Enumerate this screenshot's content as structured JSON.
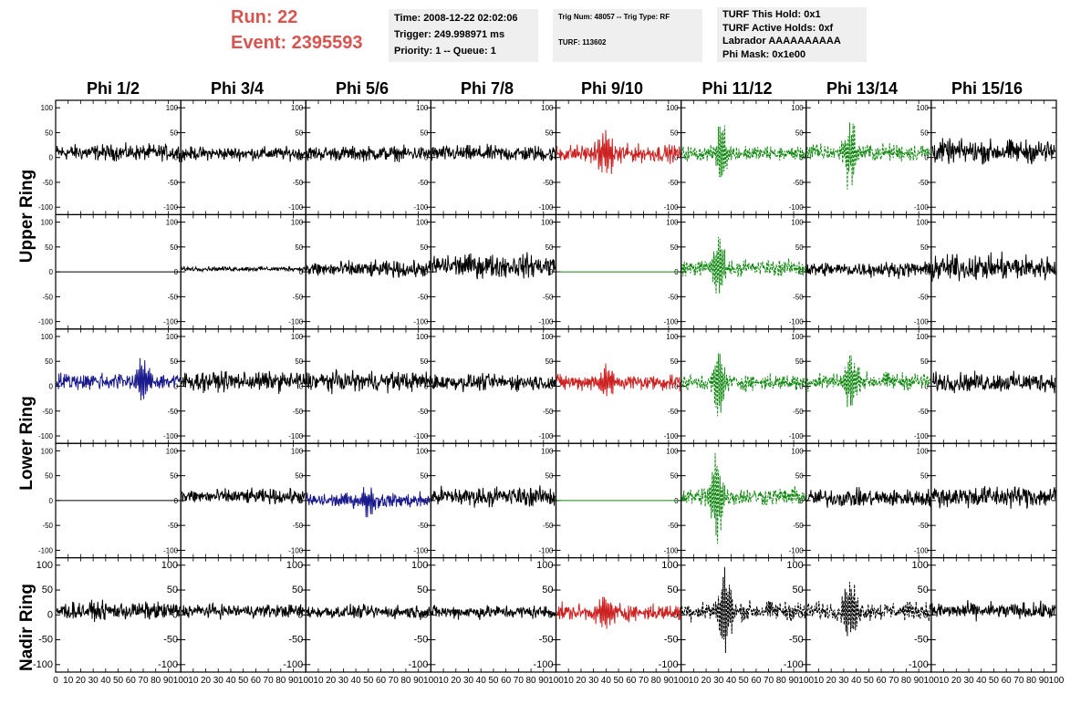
{
  "header": {
    "run_label": "Run:    22",
    "event_label": "Event: 2395593",
    "time": "Time: 2008-12-22 02:02:06",
    "trigger": "Trigger: 249.998971 ms",
    "priority": "Priority: 1 -- Queue: 1",
    "trig_num": "Trig Num: 48057 -- Trig Type: RF",
    "turf": "TURF: 113602",
    "turf_hold": "TURF This Hold: 0x1",
    "turf_active": "TURF Active Holds: 0xf",
    "labrador": "Labrador AAAAAAAAAA",
    "phi_mask": "Phi Mask: 0x1e00"
  },
  "columns": [
    "Phi 1/2",
    "Phi 3/4",
    "Phi 5/6",
    "Phi 7/8",
    "Phi 9/10",
    "Phi 11/12",
    "Phi 13/14",
    "Phi 15/16"
  ],
  "rows": [
    "Upper Ring",
    "Lower Ring",
    "Nadir Ring"
  ],
  "colors": {
    "black": "#000000",
    "red": "#cc2222",
    "green": "#118811",
    "blue": "#1a1a8c",
    "run_text": "#d9534f",
    "panel_bg": "#efefef"
  },
  "chart_data": {
    "type": "line",
    "description_axes": "Each panel: time sample (0–100) vs amplitude",
    "xlim": [
      0,
      100
    ],
    "ylim": [
      -115,
      115
    ],
    "y_ticks": [
      100,
      50,
      0,
      -50,
      -100
    ],
    "x_ticks": [
      0,
      10,
      20,
      30,
      40,
      50,
      60,
      70,
      80,
      90,
      100
    ],
    "panel_rows": 5,
    "panel_cols": 8,
    "panels": [
      {
        "row": 0,
        "col": 0,
        "color": "black",
        "dash": false,
        "amp": 11,
        "baseline": 10,
        "burst": null,
        "flat": false
      },
      {
        "row": 0,
        "col": 1,
        "color": "black",
        "dash": false,
        "amp": 9,
        "baseline": 8,
        "burst": null,
        "flat": false
      },
      {
        "row": 0,
        "col": 2,
        "color": "black",
        "dash": false,
        "amp": 10,
        "baseline": 8,
        "burst": null,
        "flat": false
      },
      {
        "row": 0,
        "col": 3,
        "color": "black",
        "dash": false,
        "amp": 11,
        "baseline": 8,
        "burst": null,
        "flat": false
      },
      {
        "row": 0,
        "col": 4,
        "color": "red",
        "dash": false,
        "amp": 12,
        "baseline": 8,
        "burst": [
          25,
          55,
          38
        ],
        "flat": false
      },
      {
        "row": 0,
        "col": 5,
        "color": "green",
        "dash": true,
        "amp": 10,
        "baseline": 8,
        "burst": [
          25,
          40,
          70
        ],
        "flat": false
      },
      {
        "row": 0,
        "col": 6,
        "color": "green",
        "dash": true,
        "amp": 12,
        "baseline": 10,
        "burst": [
          25,
          45,
          65
        ],
        "flat": false
      },
      {
        "row": 0,
        "col": 7,
        "color": "black",
        "dash": false,
        "amp": 16,
        "baseline": 12,
        "burst": null,
        "flat": false
      },
      {
        "row": 1,
        "col": 0,
        "color": "black",
        "dash": false,
        "amp": 0,
        "baseline": 0,
        "burst": null,
        "flat": true
      },
      {
        "row": 1,
        "col": 1,
        "color": "black",
        "dash": false,
        "amp": 3,
        "baseline": 6,
        "burst": null,
        "flat": false
      },
      {
        "row": 1,
        "col": 2,
        "color": "black",
        "dash": false,
        "amp": 11,
        "baseline": 5,
        "burst": null,
        "flat": false
      },
      {
        "row": 1,
        "col": 3,
        "color": "black",
        "dash": false,
        "amp": 16,
        "baseline": 12,
        "burst": null,
        "flat": false
      },
      {
        "row": 1,
        "col": 4,
        "color": "green",
        "dash": false,
        "amp": 0,
        "baseline": 0,
        "burst": null,
        "flat": true
      },
      {
        "row": 1,
        "col": 5,
        "color": "green",
        "dash": true,
        "amp": 11,
        "baseline": 8,
        "burst": [
          20,
          40,
          58
        ],
        "flat": false
      },
      {
        "row": 1,
        "col": 6,
        "color": "black",
        "dash": false,
        "amp": 10,
        "baseline": 5,
        "burst": null,
        "flat": false
      },
      {
        "row": 1,
        "col": 7,
        "color": "black",
        "dash": false,
        "amp": 17,
        "baseline": 8,
        "burst": null,
        "flat": false
      },
      {
        "row": 2,
        "col": 0,
        "color": "blue",
        "dash": false,
        "amp": 12,
        "baseline": 10,
        "burst": [
          60,
          80,
          40
        ],
        "flat": false
      },
      {
        "row": 2,
        "col": 1,
        "color": "black",
        "dash": false,
        "amp": 13,
        "baseline": 10,
        "burst": null,
        "flat": false
      },
      {
        "row": 2,
        "col": 2,
        "color": "black",
        "dash": false,
        "amp": 13,
        "baseline": 10,
        "burst": null,
        "flat": false
      },
      {
        "row": 2,
        "col": 3,
        "color": "black",
        "dash": false,
        "amp": 11,
        "baseline": 8,
        "burst": null,
        "flat": false
      },
      {
        "row": 2,
        "col": 4,
        "color": "red",
        "dash": false,
        "amp": 11,
        "baseline": 8,
        "burst": [
          25,
          55,
          30
        ],
        "flat": false
      },
      {
        "row": 2,
        "col": 5,
        "color": "green",
        "dash": true,
        "amp": 11,
        "baseline": 8,
        "burst": [
          22,
          38,
          75
        ],
        "flat": false
      },
      {
        "row": 2,
        "col": 6,
        "color": "green",
        "dash": true,
        "amp": 12,
        "baseline": 10,
        "burst": [
          25,
          45,
          55
        ],
        "flat": false
      },
      {
        "row": 2,
        "col": 7,
        "color": "black",
        "dash": false,
        "amp": 13,
        "baseline": 8,
        "burst": null,
        "flat": false
      },
      {
        "row": 3,
        "col": 0,
        "color": "black",
        "dash": false,
        "amp": 0,
        "baseline": 0,
        "burst": null,
        "flat": true
      },
      {
        "row": 3,
        "col": 1,
        "color": "black",
        "dash": false,
        "amp": 10,
        "baseline": 8,
        "burst": null,
        "flat": false
      },
      {
        "row": 3,
        "col": 2,
        "color": "blue",
        "dash": false,
        "amp": 10,
        "baseline": 0,
        "burst": [
          40,
          60,
          30
        ],
        "flat": false
      },
      {
        "row": 3,
        "col": 3,
        "color": "black",
        "dash": false,
        "amp": 13,
        "baseline": 8,
        "burst": null,
        "flat": false
      },
      {
        "row": 3,
        "col": 4,
        "color": "green",
        "dash": false,
        "amp": 0,
        "baseline": 0,
        "burst": null,
        "flat": true
      },
      {
        "row": 3,
        "col": 5,
        "color": "green",
        "dash": true,
        "amp": 12,
        "baseline": 8,
        "burst": [
          18,
          38,
          85
        ],
        "flat": false
      },
      {
        "row": 3,
        "col": 6,
        "color": "black",
        "dash": false,
        "amp": 12,
        "baseline": 5,
        "burst": null,
        "flat": false
      },
      {
        "row": 3,
        "col": 7,
        "color": "black",
        "dash": false,
        "amp": 15,
        "baseline": 8,
        "burst": null,
        "flat": false
      },
      {
        "row": 4,
        "col": 0,
        "color": "black",
        "dash": false,
        "amp": 12,
        "baseline": 8,
        "burst": null,
        "flat": false
      },
      {
        "row": 4,
        "col": 1,
        "color": "black",
        "dash": false,
        "amp": 9,
        "baseline": 8,
        "burst": null,
        "flat": false
      },
      {
        "row": 4,
        "col": 2,
        "color": "black",
        "dash": false,
        "amp": 9,
        "baseline": 6,
        "burst": null,
        "flat": false
      },
      {
        "row": 4,
        "col": 3,
        "color": "black",
        "dash": false,
        "amp": 9,
        "baseline": 6,
        "burst": null,
        "flat": false
      },
      {
        "row": 4,
        "col": 4,
        "color": "red",
        "dash": false,
        "amp": 11,
        "baseline": 5,
        "burst": [
          25,
          55,
          30
        ],
        "flat": false
      },
      {
        "row": 4,
        "col": 5,
        "color": "black",
        "dash": true,
        "amp": 13,
        "baseline": 8,
        "burst": [
          25,
          45,
          85
        ],
        "flat": false
      },
      {
        "row": 4,
        "col": 6,
        "color": "black",
        "dash": true,
        "amp": 12,
        "baseline": 8,
        "burst": [
          25,
          45,
          60
        ],
        "flat": false
      },
      {
        "row": 4,
        "col": 7,
        "color": "black",
        "dash": false,
        "amp": 11,
        "baseline": 8,
        "burst": null,
        "flat": false
      }
    ]
  }
}
